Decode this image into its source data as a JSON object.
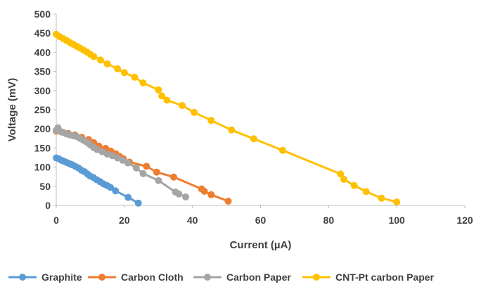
{
  "chart_data": {
    "type": "scatter",
    "xlabel": "Current (µA)",
    "ylabel": "Voltage (mV)",
    "xlim": [
      0,
      120
    ],
    "ylim": [
      0,
      500
    ],
    "x_ticks": [
      0,
      20,
      40,
      60,
      80,
      100,
      120
    ],
    "y_ticks": [
      0,
      50,
      100,
      150,
      200,
      250,
      300,
      350,
      400,
      450,
      500
    ],
    "grid": false,
    "legend_position": "bottom",
    "series": [
      {
        "name": "Graphite",
        "color": "#5B9BD5",
        "points": [
          [
            0,
            124
          ],
          [
            0.7,
            122
          ],
          [
            1.5,
            118
          ],
          [
            2.3,
            115
          ],
          [
            3.1,
            112
          ],
          [
            3.9,
            109
          ],
          [
            4.7,
            106
          ],
          [
            5.6,
            102
          ],
          [
            6.5,
            98
          ],
          [
            7.4,
            92
          ],
          [
            8.3,
            88
          ],
          [
            9.2,
            82
          ],
          [
            9.9,
            77
          ],
          [
            10.9,
            73
          ],
          [
            11.9,
            67
          ],
          [
            12.9,
            62
          ],
          [
            13.9,
            56
          ],
          [
            14.9,
            52
          ],
          [
            15.9,
            47
          ],
          [
            17.4,
            38
          ],
          [
            21.1,
            21
          ],
          [
            24.1,
            6
          ]
        ]
      },
      {
        "name": "Carbon Cloth",
        "color": "#ED7D31",
        "points": [
          [
            0,
            194
          ],
          [
            1.5,
            192
          ],
          [
            3.5,
            188
          ],
          [
            5.5,
            184
          ],
          [
            7.5,
            178
          ],
          [
            9.5,
            172
          ],
          [
            11,
            164
          ],
          [
            12.5,
            155
          ],
          [
            14.5,
            149
          ],
          [
            16,
            142
          ],
          [
            17.5,
            135
          ],
          [
            18.6,
            128
          ],
          [
            19.7,
            122
          ],
          [
            21.5,
            113
          ],
          [
            26.5,
            102
          ],
          [
            29.5,
            87
          ],
          [
            34.5,
            74
          ],
          [
            42.7,
            43
          ],
          [
            43.5,
            37
          ],
          [
            45.5,
            28
          ],
          [
            50.5,
            11
          ]
        ]
      },
      {
        "name": "Carbon Paper",
        "color": "#A5A5A5",
        "points": [
          [
            0,
            196
          ],
          [
            0.5,
            203
          ],
          [
            1,
            194
          ],
          [
            2,
            191
          ],
          [
            3,
            187
          ],
          [
            4,
            184
          ],
          [
            5,
            182
          ],
          [
            6,
            180
          ],
          [
            7,
            175
          ],
          [
            8,
            170
          ],
          [
            9,
            165
          ],
          [
            10,
            158
          ],
          [
            11,
            151
          ],
          [
            12,
            146
          ],
          [
            13.5,
            140
          ],
          [
            15,
            134
          ],
          [
            16.5,
            130
          ],
          [
            18,
            124
          ],
          [
            19.5,
            118
          ],
          [
            21,
            111
          ],
          [
            23.5,
            98
          ],
          [
            25.5,
            83
          ],
          [
            30,
            65
          ],
          [
            35,
            35
          ],
          [
            36,
            30
          ],
          [
            38,
            22
          ]
        ]
      },
      {
        "name": "CNT-Pt carbon Paper",
        "color": "#FFC000",
        "points": [
          [
            0,
            447
          ],
          [
            1,
            441
          ],
          [
            2,
            436
          ],
          [
            3,
            431
          ],
          [
            4,
            426
          ],
          [
            5,
            421
          ],
          [
            6,
            416
          ],
          [
            7,
            411
          ],
          [
            8,
            406
          ],
          [
            9,
            401
          ],
          [
            10,
            395
          ],
          [
            11,
            389
          ],
          [
            13,
            380
          ],
          [
            15,
            370
          ],
          [
            18,
            357
          ],
          [
            20,
            347
          ],
          [
            23,
            335
          ],
          [
            25.5,
            320
          ],
          [
            30,
            302
          ],
          [
            31,
            286
          ],
          [
            32.5,
            275
          ],
          [
            37,
            261
          ],
          [
            40.5,
            243
          ],
          [
            45.5,
            222
          ],
          [
            51.5,
            197
          ],
          [
            58,
            174
          ],
          [
            66.5,
            144
          ],
          [
            83.5,
            82
          ],
          [
            84.5,
            68
          ],
          [
            87.5,
            52
          ],
          [
            91,
            36
          ],
          [
            95.5,
            19
          ],
          [
            100,
            9
          ]
        ]
      }
    ]
  }
}
